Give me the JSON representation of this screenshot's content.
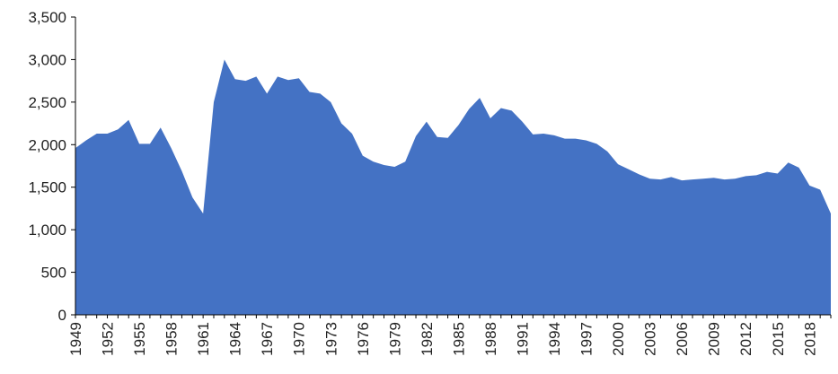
{
  "chart_data": {
    "type": "area",
    "title": "",
    "xlabel": "",
    "ylabel": "",
    "ylim": [
      0,
      3500
    ],
    "grid": false,
    "legend": "none",
    "y_ticks": [
      "0",
      "500",
      "1,000",
      "1,500",
      "2,000",
      "2,500",
      "3,000",
      "3,500"
    ],
    "x_tick_labels": [
      "1949",
      "1952",
      "1955",
      "1958",
      "1961",
      "1964",
      "1967",
      "1970",
      "1973",
      "1976",
      "1979",
      "1982",
      "1985",
      "1988",
      "1991",
      "1994",
      "1997",
      "2000",
      "2003",
      "2006",
      "2009",
      "2012",
      "2015",
      "2018"
    ],
    "colors": {
      "fill": "#4472C4",
      "axis": "#000000",
      "text": "#222222"
    },
    "x": [
      1949,
      1950,
      1951,
      1952,
      1953,
      1954,
      1955,
      1956,
      1957,
      1958,
      1959,
      1960,
      1961,
      1962,
      1963,
      1964,
      1965,
      1966,
      1967,
      1968,
      1969,
      1970,
      1971,
      1972,
      1973,
      1974,
      1975,
      1976,
      1977,
      1978,
      1979,
      1980,
      1981,
      1982,
      1983,
      1984,
      1985,
      1986,
      1987,
      1988,
      1989,
      1990,
      1991,
      1992,
      1993,
      1994,
      1995,
      1996,
      1997,
      1998,
      1999,
      2000,
      2001,
      2002,
      2003,
      2004,
      2005,
      2006,
      2007,
      2008,
      2009,
      2010,
      2011,
      2012,
      2013,
      2014,
      2015,
      2016,
      2017,
      2018,
      2019,
      2020
    ],
    "series": [
      {
        "values": [
          1960,
          2050,
          2130,
          2130,
          2180,
          2290,
          2010,
          2010,
          2200,
          1960,
          1690,
          1380,
          1190,
          2500,
          3000,
          2770,
          2750,
          2800,
          2600,
          2800,
          2760,
          2780,
          2620,
          2600,
          2500,
          2250,
          2130,
          1870,
          1800,
          1760,
          1740,
          1800,
          2100,
          2270,
          2090,
          2080,
          2230,
          2420,
          2550,
          2310,
          2430,
          2400,
          2270,
          2120,
          2130,
          2110,
          2070,
          2070,
          2050,
          2010,
          1920,
          1770,
          1710,
          1650,
          1600,
          1590,
          1620,
          1580,
          1590,
          1600,
          1610,
          1590,
          1600,
          1630,
          1640,
          1680,
          1660,
          1790,
          1730,
          1520,
          1470,
          1190
        ]
      }
    ]
  }
}
